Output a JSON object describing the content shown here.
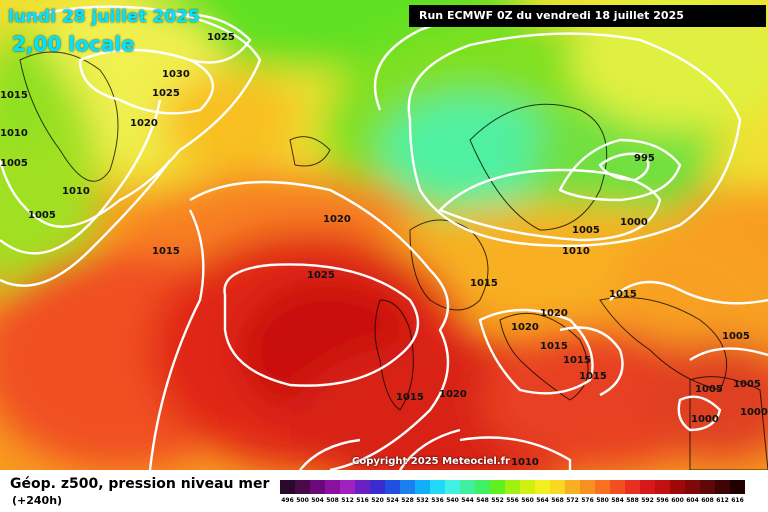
{
  "header": {
    "date": "lundi 28 juillet 2025",
    "time": "2,00 locale",
    "run": "Run ECMWF 0Z du vendredi 18 juillet 2025"
  },
  "copyright": "Copyright 2025 Meteociel.fr",
  "legend": {
    "title": "Géop. z500, pression niveau mer",
    "subtitle": "(+240h)",
    "scale": [
      {
        "label": "496",
        "color": "#2a0a2a"
      },
      {
        "label": "500",
        "color": "#4a0a4a"
      },
      {
        "label": "504",
        "color": "#6a0a7a"
      },
      {
        "label": "508",
        "color": "#8a10a0"
      },
      {
        "label": "512",
        "color": "#a020c0"
      },
      {
        "label": "516",
        "color": "#6a20c0"
      },
      {
        "label": "520",
        "color": "#3a2ad0"
      },
      {
        "label": "524",
        "color": "#2050e0"
      },
      {
        "label": "528",
        "color": "#1a80f0"
      },
      {
        "label": "532",
        "color": "#10b0f8"
      },
      {
        "label": "536",
        "color": "#20d8f8"
      },
      {
        "label": "540",
        "color": "#40f0e0"
      },
      {
        "label": "544",
        "color": "#40f0a0"
      },
      {
        "label": "548",
        "color": "#40f060"
      },
      {
        "label": "552",
        "color": "#60f020"
      },
      {
        "label": "556",
        "color": "#a0f010"
      },
      {
        "label": "560",
        "color": "#d0f010"
      },
      {
        "label": "564",
        "color": "#f0f020"
      },
      {
        "label": "568",
        "color": "#f8d820"
      },
      {
        "label": "572",
        "color": "#f8b020"
      },
      {
        "label": "576",
        "color": "#f89020"
      },
      {
        "label": "580",
        "color": "#f87020"
      },
      {
        "label": "584",
        "color": "#f05020"
      },
      {
        "label": "588",
        "color": "#e83020"
      },
      {
        "label": "592",
        "color": "#d81818"
      },
      {
        "label": "596",
        "color": "#c01010"
      },
      {
        "label": "600",
        "color": "#a00808"
      },
      {
        "label": "604",
        "color": "#800808"
      },
      {
        "label": "608",
        "color": "#600808"
      },
      {
        "label": "612",
        "color": "#400404"
      },
      {
        "label": "616",
        "color": "#200000"
      }
    ]
  },
  "isobar_labels": [
    {
      "text": "1025"
    },
    {
      "text": "1030"
    },
    {
      "text": "1025"
    },
    {
      "text": "1015"
    },
    {
      "text": "1020"
    },
    {
      "text": "1010"
    },
    {
      "text": "1005"
    },
    {
      "text": "1010"
    },
    {
      "text": "1005"
    },
    {
      "text": "1015"
    },
    {
      "text": "1020"
    },
    {
      "text": "1025"
    },
    {
      "text": "995"
    },
    {
      "text": "1000"
    },
    {
      "text": "1005"
    },
    {
      "text": "1010"
    },
    {
      "text": "1015"
    },
    {
      "text": "1015"
    },
    {
      "text": "1020"
    },
    {
      "text": "1020"
    },
    {
      "text": "1015"
    },
    {
      "text": "1015"
    },
    {
      "text": "1015"
    },
    {
      "text": "1015"
    },
    {
      "text": "1020"
    },
    {
      "text": "1005"
    },
    {
      "text": "1005"
    },
    {
      "text": "1005"
    },
    {
      "text": "1000"
    },
    {
      "text": "1000"
    },
    {
      "text": "1010"
    }
  ]
}
